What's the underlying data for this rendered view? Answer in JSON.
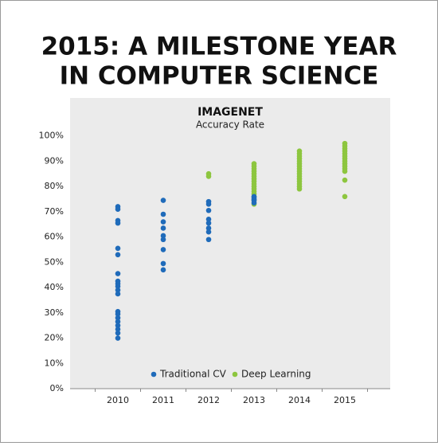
{
  "chart_data": {
    "type": "scatter",
    "title": [
      "2015: A MILESTONE YEAR",
      "IN COMPUTER SCIENCE"
    ],
    "subtitle": "IMAGENET",
    "y_label": "Accuracy Rate",
    "categories": [
      "2010",
      "2011",
      "2012",
      "2013",
      "2014",
      "2015"
    ],
    "ylim": [
      0,
      115
    ],
    "yticks": [
      {
        "value": 0,
        "label": "0%"
      },
      {
        "value": 10,
        "label": "10%"
      },
      {
        "value": 20,
        "label": "20%"
      },
      {
        "value": 30,
        "label": "30%"
      },
      {
        "value": 40,
        "label": "40%"
      },
      {
        "value": 50,
        "label": "50%"
      },
      {
        "value": 60,
        "label": "60%"
      },
      {
        "value": 70,
        "label": "70%"
      },
      {
        "value": 80,
        "label": "80%"
      },
      {
        "value": 90,
        "label": "90%"
      },
      {
        "value": 100,
        "label": "100%"
      }
    ],
    "legend": "bottom",
    "series": [
      {
        "name": "Traditional CV",
        "color": "#1f6bba",
        "x": [
          "2010",
          "2010",
          "2010",
          "2010",
          "2010",
          "2010",
          "2010",
          "2010",
          "2010",
          "2010",
          "2010",
          "2010",
          "2010",
          "2010",
          "2010",
          "2010",
          "2010",
          "2010",
          "2010",
          "2010",
          "2011",
          "2011",
          "2011",
          "2011",
          "2011",
          "2011",
          "2011",
          "2011",
          "2011",
          "2012",
          "2012",
          "2012",
          "2012",
          "2012",
          "2012",
          "2012",
          "2012",
          "2013",
          "2013",
          "2013",
          "2013",
          "2013"
        ],
        "values": [
          72,
          71,
          66.5,
          65.5,
          55.5,
          53,
          45.5,
          42.5,
          41.5,
          40.5,
          39,
          37.5,
          30.5,
          29.5,
          28,
          26.5,
          25,
          23.5,
          22,
          20,
          74.5,
          69,
          66,
          63.5,
          60.5,
          59,
          55,
          49.5,
          47,
          74,
          73,
          70.5,
          67,
          65.5,
          63.5,
          62,
          59,
          76,
          75.5,
          75,
          74.5,
          73.5
        ]
      },
      {
        "name": "Deep Learning",
        "color": "#8dc63f",
        "x": [
          "2012",
          "2012",
          "2013",
          "2013",
          "2013",
          "2013",
          "2013",
          "2013",
          "2013",
          "2013",
          "2013",
          "2013",
          "2013",
          "2013",
          "2013",
          "2013",
          "2013",
          "2013",
          "2014",
          "2014",
          "2014",
          "2014",
          "2014",
          "2014",
          "2014",
          "2014",
          "2014",
          "2014",
          "2014",
          "2014",
          "2014",
          "2014",
          "2014",
          "2014",
          "2015",
          "2015",
          "2015",
          "2015",
          "2015",
          "2015",
          "2015",
          "2015",
          "2015",
          "2015",
          "2015",
          "2015",
          "2015",
          "2015"
        ],
        "values": [
          85,
          84,
          89,
          88,
          87,
          86,
          85,
          84,
          83,
          82,
          81,
          80,
          79,
          78,
          77,
          76,
          74.5,
          73,
          94,
          93,
          92,
          91,
          90,
          89,
          88,
          87,
          86,
          85,
          84,
          83,
          82,
          81,
          80,
          79,
          97,
          96,
          95,
          94,
          93,
          92,
          91,
          90,
          89,
          88,
          87,
          86,
          82.5,
          76
        ]
      }
    ]
  }
}
